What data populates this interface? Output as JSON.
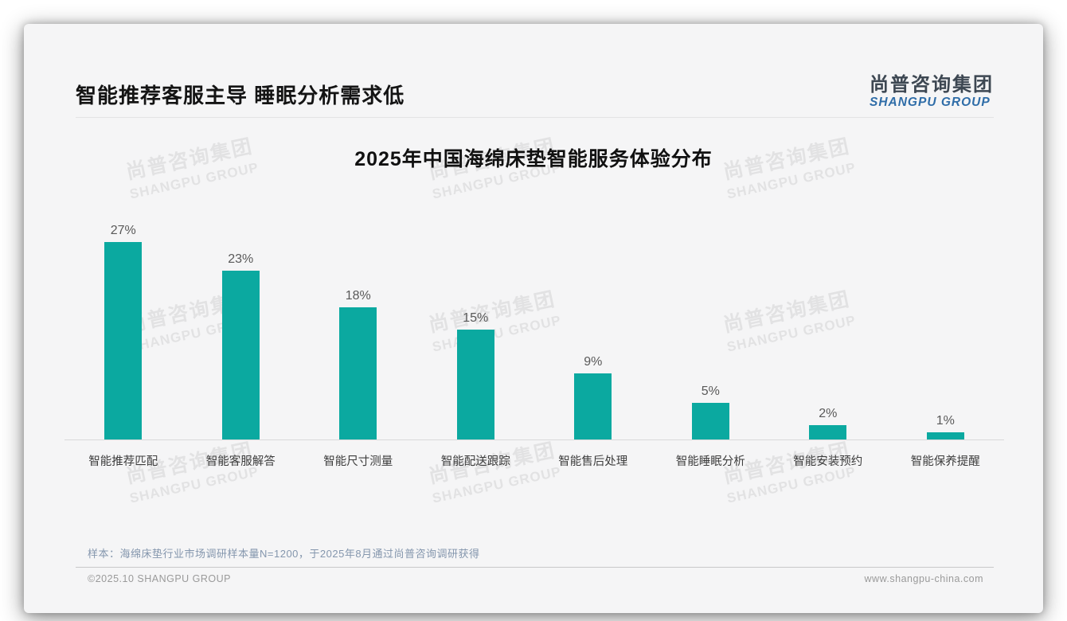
{
  "page": {
    "title": "智能推荐客服主导 睡眠分析需求低",
    "logo": {
      "cn": "尚普咨询集团",
      "en": "SHANGPU GROUP"
    },
    "watermark": {
      "line1": "尚普咨询集团",
      "line2": "SHANGPU GROUP"
    },
    "note": "样本：海绵床垫行业市场调研样本量N=1200，于2025年8月通过尚普咨询调研获得",
    "footer": {
      "left": "©2025.10 SHANGPU GROUP",
      "right": "www.shangpu-china.com"
    }
  },
  "colors": {
    "bar": "#0BA9A0",
    "logo_cn": "#3d4752",
    "logo_en": "#2f6da8",
    "note_text": "#8496ad",
    "card_bg": "#f5f5f6"
  },
  "chart_data": {
    "type": "bar",
    "title": "2025年中国海绵床垫智能服务体验分布",
    "categories": [
      "智能推荐匹配",
      "智能客服解答",
      "智能尺寸测量",
      "智能配送跟踪",
      "智能售后处理",
      "智能睡眠分析",
      "智能安装预约",
      "智能保养提醒"
    ],
    "values": [
      27,
      23,
      18,
      15,
      9,
      5,
      2,
      1
    ],
    "unit": "%",
    "value_labels": true,
    "xlabel": "",
    "ylabel": "",
    "ylim": [
      0,
      30
    ],
    "grid": false,
    "legend": false,
    "bar_color": "#0BA9A0"
  }
}
